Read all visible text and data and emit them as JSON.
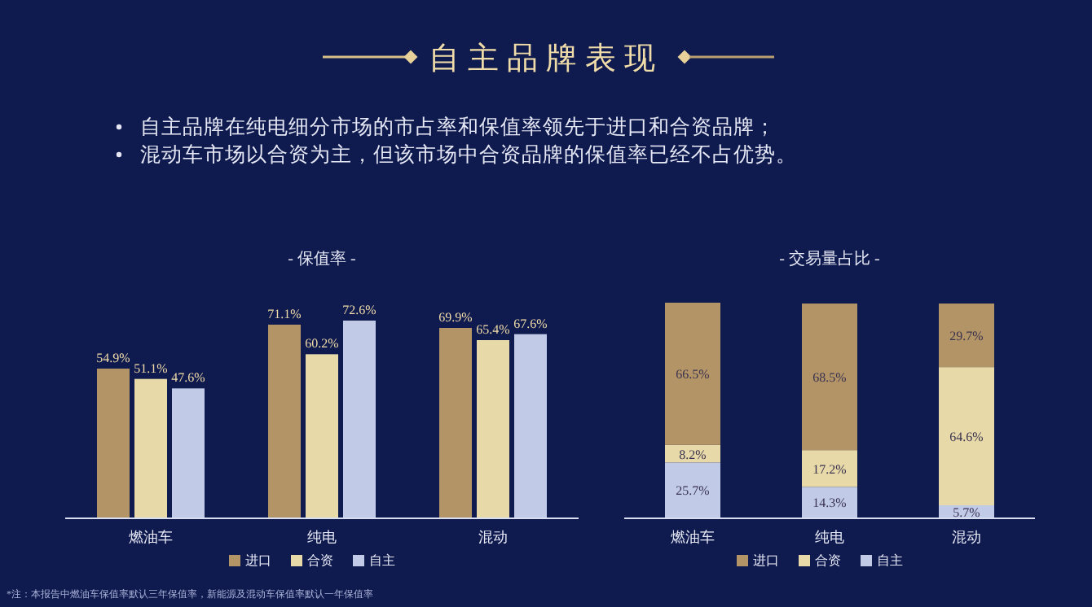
{
  "chart_data": [
    {
      "type": "other",
      "title": "自主品牌表现",
      "annotations": [
        "自主品牌在纯电细分市场的市占率和保值率领先于进口和合资品牌；",
        "混动车市场以合资为主，但该市场中合资品牌的保值率已经不占优势。",
        "*注：本报告中燃油车保值率默认三年保值率，新能源及混动车保值率默认一年保值率"
      ]
    },
    {
      "type": "bar",
      "title": "- 保值率 -",
      "categories": [
        "燃油车",
        "纯电",
        "混动"
      ],
      "legend": "bottom",
      "data_labels": false,
      "series": [
        {
          "name": "进口",
          "color": "#b39466",
          "values": [
            54.9,
            71.1,
            69.9
          ],
          "value_labels": [
            "54.9%",
            "71.1%",
            "69.9%"
          ]
        },
        {
          "name": "合资",
          "color": "#e8d9a8",
          "values": [
            51.1,
            60.2,
            65.4
          ],
          "value_labels": [
            "51.1%",
            "60.2%",
            "65.4%"
          ]
        },
        {
          "name": "自主",
          "color": "#c1cbe8",
          "values": [
            47.6,
            72.6,
            67.6
          ],
          "value_labels": [
            "47.6%",
            "72.6%",
            "67.6%"
          ]
        }
      ]
    },
    {
      "type": "bar",
      "title": "- 交易量占比 -",
      "categories": [
        "燃油车",
        "纯电",
        "混动"
      ],
      "stacked": true,
      "legend": "bottom",
      "data_labels": false,
      "series": [
        {
          "name": "自主",
          "color": "#c1cbe8",
          "values": [
            25.7,
            14.3,
            5.7
          ],
          "value_labels": [
            "25.7%",
            "14.3%",
            "5.7%"
          ]
        },
        {
          "name": "合资",
          "color": "#e8d9a8",
          "values": [
            8.2,
            17.2,
            64.6
          ],
          "value_labels": [
            "8.2%",
            "17.2%",
            "64.6%"
          ]
        },
        {
          "name": "进口",
          "color": "#b39466",
          "values": [
            66.5,
            68.5,
            29.7
          ],
          "value_labels": [
            "66.5%",
            "68.5%",
            "29.7%"
          ]
        }
      ]
    }
  ]
}
